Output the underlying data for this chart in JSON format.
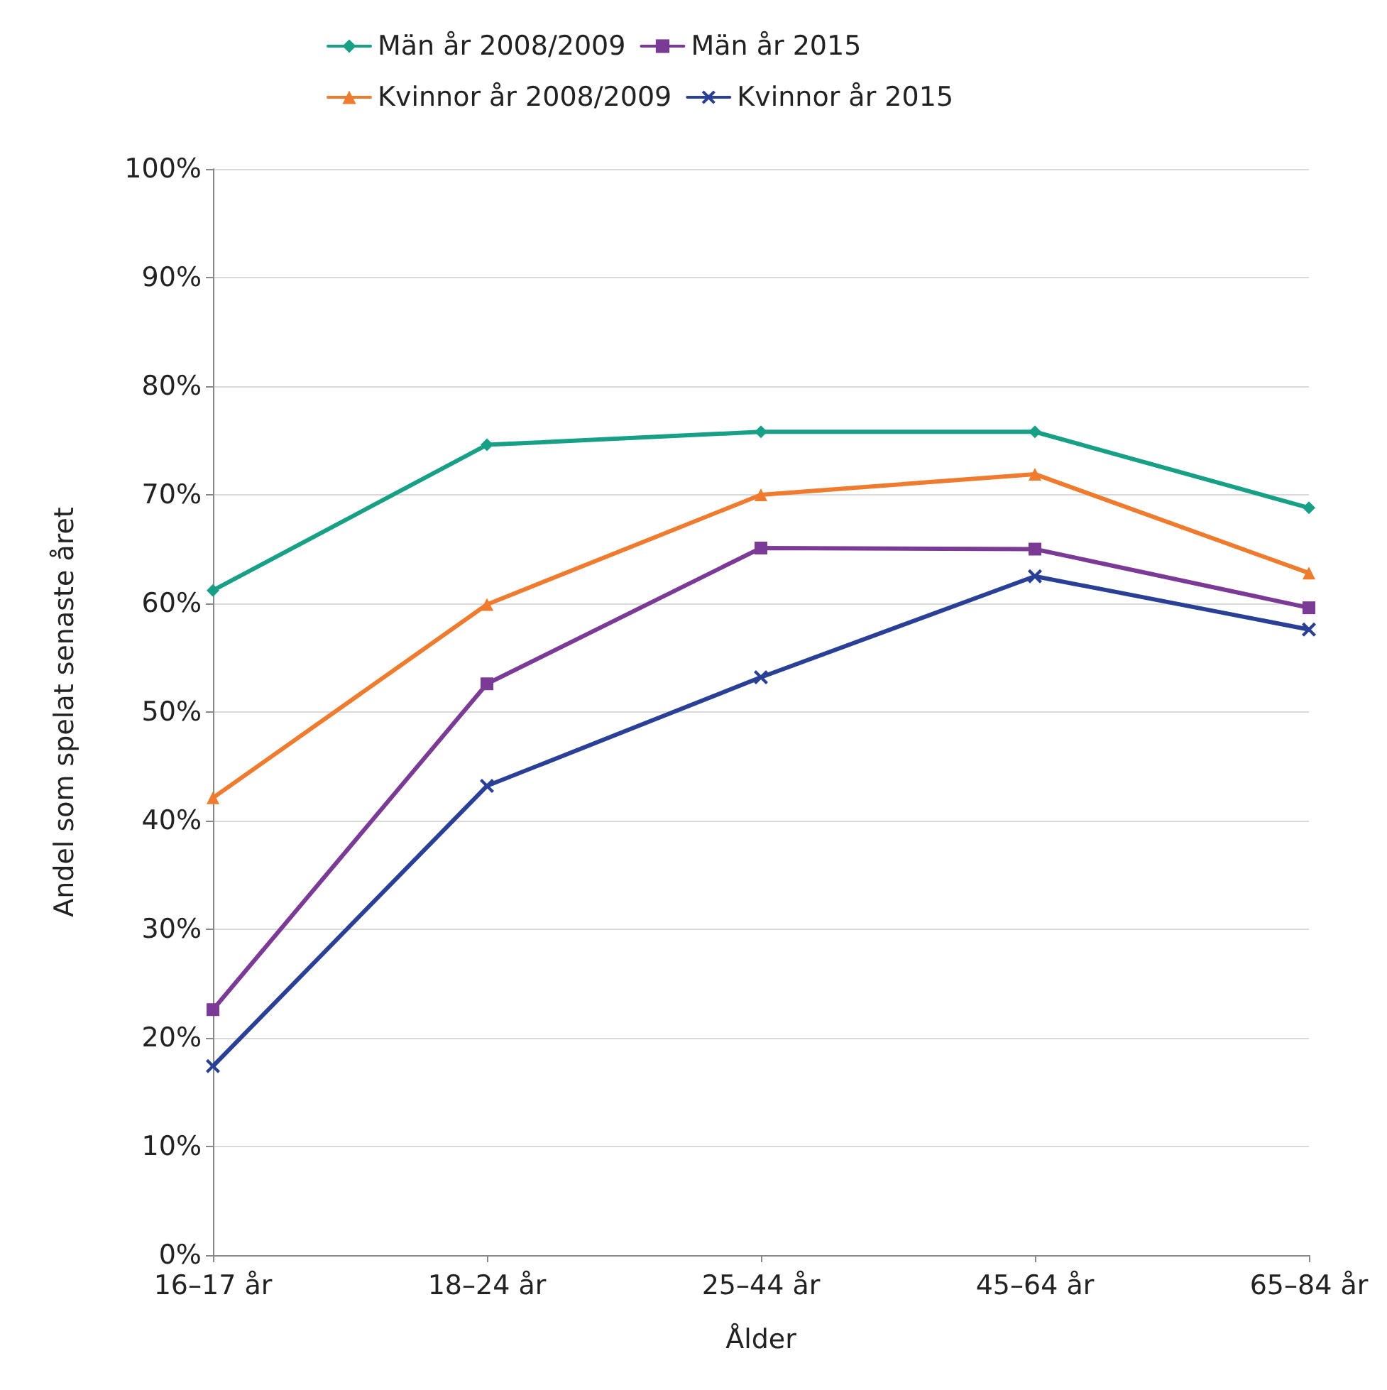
{
  "chart_data": {
    "type": "line",
    "xlabel": "Ålder",
    "ylabel": "Andel som spelat senaste året",
    "categories": [
      "16–17 år",
      "18–24 år",
      "25–44 år",
      "45–64 år",
      "65–84 år"
    ],
    "series": [
      {
        "name": "Män år 2008/2009",
        "color": "#17a085",
        "marker": "diamond",
        "values": [
          61.2,
          74.6,
          75.8,
          75.8,
          68.8
        ]
      },
      {
        "name": "Män år 2015",
        "color": "#7b3a96",
        "marker": "square",
        "values": [
          22.6,
          52.6,
          65.1,
          65.0,
          59.6
        ]
      },
      {
        "name": "Kvinnor år 2008/2009",
        "color": "#ef7b2e",
        "marker": "triangle",
        "values": [
          42.1,
          59.9,
          70.0,
          71.9,
          62.8
        ]
      },
      {
        "name": "Kvinnor år 2015",
        "color": "#2a3f96",
        "marker": "cross",
        "values": [
          17.4,
          43.2,
          53.2,
          62.5,
          57.6
        ]
      }
    ],
    "ylim": [
      0,
      100
    ],
    "yticks": [
      {
        "value": 0,
        "label": "0%"
      },
      {
        "value": 10,
        "label": "10%"
      },
      {
        "value": 20,
        "label": "20%"
      },
      {
        "value": 30,
        "label": "30%"
      },
      {
        "value": 40,
        "label": "40%"
      },
      {
        "value": 50,
        "label": "50%"
      },
      {
        "value": 60,
        "label": "60%"
      },
      {
        "value": 70,
        "label": "70%"
      },
      {
        "value": 80,
        "label": "80%"
      },
      {
        "value": 90,
        "label": "90%"
      },
      {
        "value": 100,
        "label": "100%"
      }
    ],
    "grid": "y",
    "legend": "top",
    "line_style": "solid"
  }
}
